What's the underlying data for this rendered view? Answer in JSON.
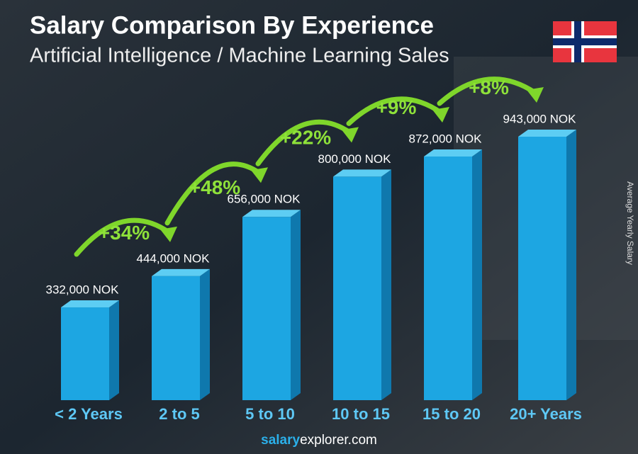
{
  "chart_data": {
    "type": "bar3d",
    "title": "Salary Comparison By Experience",
    "subtitle": "Artificial Intelligence / Machine Learning Sales",
    "y_label": "Average Yearly Salary",
    "categories": [
      "< 2 Years",
      "2 to 5",
      "5 to 10",
      "10 to 15",
      "15 to 20",
      "20+ Years"
    ],
    "values": [
      332000,
      444000,
      656000,
      800000,
      872000,
      943000
    ],
    "value_labels": [
      "332,000 NOK",
      "444,000 NOK",
      "656,000 NOK",
      "800,000 NOK",
      "872,000 NOK",
      "943,000 NOK"
    ],
    "changes": [
      "+34%",
      "+48%",
      "+22%",
      "+9%",
      "+8%"
    ],
    "color": "#1da6e2",
    "footer": {
      "brand": "salary",
      "rest": "explorer.com"
    }
  }
}
